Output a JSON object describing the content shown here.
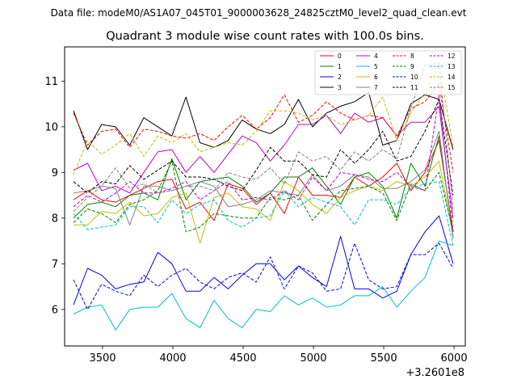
{
  "chart_data": {
    "type": "line",
    "suptitle": "Data file: modeM0/AS1A07_045T01_9000003628_24825cztM0_level2_quad_clean.evt",
    "title": "Quadrant 3 module wise count rates with 100.0s bins.",
    "xlabel": "",
    "ylabel": "",
    "x_offset_label": "+3.2601e8",
    "xlim": [
      3230,
      6080
    ],
    "ylim": [
      5.2,
      11.75
    ],
    "x_ticks": [
      3500,
      4000,
      4500,
      5000,
      5500,
      6000
    ],
    "x_tick_labels": [
      "3500",
      "4000",
      "4500",
      "5000",
      "5500",
      "6000"
    ],
    "y_ticks": [
      6,
      7,
      8,
      9,
      10,
      11
    ],
    "y_tick_labels": [
      "6",
      "7",
      "8",
      "9",
      "10",
      "11"
    ],
    "legend_position": "top-right",
    "x": [
      3293,
      3393,
      3493,
      3593,
      3693,
      3793,
      3893,
      3993,
      4093,
      4193,
      4293,
      4393,
      4493,
      4593,
      4693,
      4793,
      4893,
      4993,
      5093,
      5193,
      5293,
      5393,
      5493,
      5593,
      5693,
      5793,
      5893,
      5993
    ],
    "series": [
      {
        "name": "0",
        "color": "#ff0000",
        "dash": "solid",
        "values": [
          8.4,
          8.6,
          8.4,
          8.35,
          8.5,
          8.65,
          8.8,
          8.85,
          8.2,
          8.35,
          7.95,
          8.75,
          8.65,
          8.3,
          8.55,
          8.1,
          8.9,
          8.5,
          8.5,
          8.45,
          8.9,
          8.7,
          8.9,
          9.2,
          8.6,
          9.0,
          9.7,
          7.7
        ]
      },
      {
        "name": "1",
        "color": "#008000",
        "dash": "solid",
        "values": [
          8.0,
          8.3,
          8.35,
          8.25,
          8.5,
          8.55,
          8.4,
          9.3,
          8.4,
          8.8,
          8.85,
          8.9,
          8.7,
          8.35,
          8.55,
          8.9,
          8.9,
          9.1,
          8.7,
          8.3,
          8.9,
          9.0,
          8.7,
          8.0,
          9.2,
          8.7,
          9.8,
          7.6
        ]
      },
      {
        "name": "2",
        "color": "#0000ff",
        "dash": "solid",
        "values": [
          6.1,
          6.9,
          6.75,
          6.45,
          6.55,
          6.6,
          7.25,
          7.0,
          6.4,
          6.4,
          6.7,
          6.45,
          6.75,
          7.0,
          7.0,
          6.65,
          6.95,
          6.7,
          6.5,
          7.6,
          6.45,
          6.45,
          6.25,
          6.4,
          7.2,
          7.7,
          8.05,
          7.0
        ]
      },
      {
        "name": "3",
        "color": "#000000",
        "dash": "solid",
        "values": [
          10.35,
          9.5,
          10.05,
          10.0,
          9.6,
          10.2,
          10.0,
          9.8,
          10.65,
          9.65,
          9.55,
          9.7,
          10.15,
          9.95,
          9.85,
          10.05,
          10.6,
          10.0,
          10.3,
          10.45,
          10.55,
          10.75,
          9.6,
          9.7,
          10.5,
          10.7,
          10.6,
          9.5
        ]
      },
      {
        "name": "4",
        "color": "#bf00bf",
        "dash": "solid",
        "values": [
          9.05,
          9.2,
          8.6,
          8.7,
          8.55,
          9.0,
          9.45,
          9.5,
          9.0,
          9.35,
          9.0,
          9.4,
          9.8,
          9.65,
          9.25,
          9.6,
          10.05,
          10.05,
          10.25,
          9.85,
          10.3,
          10.1,
          10.2,
          9.8,
          10.1,
          10.1,
          10.45,
          8.0
        ]
      },
      {
        "name": "5",
        "color": "#00bfbf",
        "dash": "solid",
        "values": [
          5.9,
          6.05,
          6.1,
          5.55,
          6.0,
          6.05,
          6.05,
          6.35,
          5.8,
          5.6,
          6.2,
          5.8,
          5.6,
          6.0,
          5.95,
          6.3,
          6.1,
          6.25,
          6.05,
          6.1,
          6.3,
          6.3,
          6.5,
          6.05,
          6.4,
          6.7,
          7.5,
          7.4
        ]
      },
      {
        "name": "6",
        "color": "#bfbf00",
        "dash": "solid",
        "values": [
          7.85,
          7.85,
          8.15,
          8.1,
          8.35,
          8.05,
          8.1,
          8.45,
          8.55,
          7.45,
          8.45,
          8.55,
          8.25,
          8.2,
          7.95,
          8.8,
          8.6,
          8.3,
          8.1,
          8.45,
          8.6,
          8.7,
          8.6,
          8.8,
          8.7,
          8.9,
          9.25,
          7.6
        ]
      },
      {
        "name": "7",
        "color": "#808080",
        "dash": "solid",
        "values": [
          8.55,
          8.6,
          8.7,
          8.65,
          7.85,
          8.7,
          8.7,
          8.6,
          8.7,
          8.8,
          8.7,
          8.25,
          8.3,
          8.4,
          8.6,
          8.55,
          8.5,
          8.95,
          8.6,
          8.7,
          8.95,
          8.9,
          8.65,
          8.65,
          8.8,
          9.05,
          9.9,
          7.55
        ]
      },
      {
        "name": "8",
        "color": "#ff0000",
        "dash": "dashed",
        "values": [
          10.3,
          9.6,
          9.9,
          9.95,
          9.55,
          9.95,
          9.9,
          9.8,
          9.75,
          9.85,
          9.7,
          10.0,
          10.25,
          9.95,
          10.2,
          10.7,
          10.1,
          10.25,
          10.55,
          10.3,
          10.15,
          10.25,
          10.2,
          9.8,
          10.4,
          10.55,
          10.95,
          9.0
        ]
      },
      {
        "name": "9",
        "color": "#008000",
        "dash": "dashed",
        "values": [
          7.9,
          8.2,
          8.1,
          7.9,
          8.3,
          8.4,
          8.6,
          9.25,
          7.7,
          7.8,
          8.1,
          8.05,
          8.0,
          8.0,
          8.45,
          8.4,
          8.5,
          7.95,
          8.3,
          8.6,
          8.65,
          8.7,
          8.55,
          7.95,
          8.75,
          8.6,
          9.0,
          7.7
        ]
      },
      {
        "name": "10",
        "color": "#0000ff",
        "dash": "dashed",
        "values": [
          6.65,
          6.0,
          6.55,
          6.4,
          6.3,
          6.75,
          6.5,
          6.75,
          6.9,
          6.6,
          6.45,
          6.7,
          6.8,
          6.6,
          7.15,
          6.45,
          6.95,
          6.8,
          6.4,
          6.45,
          7.45,
          6.65,
          6.45,
          6.5,
          7.2,
          7.2,
          7.45,
          6.9
        ]
      },
      {
        "name": "11",
        "color": "#000000",
        "dash": "dashed",
        "values": [
          8.8,
          8.55,
          8.8,
          8.75,
          9.15,
          8.85,
          9.05,
          9.25,
          8.9,
          8.9,
          8.85,
          8.7,
          8.6,
          9.05,
          9.55,
          9.25,
          9.25,
          8.95,
          8.9,
          9.5,
          9.2,
          9.5,
          9.9,
          9.25,
          9.35,
          9.9,
          10.6,
          8.5
        ]
      },
      {
        "name": "12",
        "color": "#bf00bf",
        "dash": "dashed",
        "values": [
          8.25,
          8.5,
          8.35,
          8.55,
          8.8,
          8.55,
          8.55,
          8.65,
          8.8,
          8.4,
          8.6,
          8.8,
          8.4,
          8.45,
          8.4,
          8.6,
          8.4,
          8.9,
          8.6,
          9.0,
          8.95,
          8.85,
          8.8,
          9.0,
          8.7,
          8.6,
          10.7,
          7.7
        ]
      },
      {
        "name": "13",
        "color": "#00bfbf",
        "dash": "dashed",
        "values": [
          8.1,
          7.75,
          7.8,
          7.85,
          8.25,
          8.25,
          7.9,
          8.4,
          8.1,
          8.3,
          8.4,
          7.95,
          7.8,
          8.0,
          8.05,
          8.6,
          8.25,
          8.45,
          8.35,
          8.25,
          7.85,
          8.4,
          8.4,
          8.3,
          8.65,
          8.75,
          8.8,
          7.4
        ]
      },
      {
        "name": "14",
        "color": "#bfbf00",
        "dash": "dashed",
        "values": [
          8.95,
          9.7,
          9.4,
          9.6,
          9.85,
          9.35,
          9.8,
          9.65,
          9.85,
          9.45,
          9.55,
          9.65,
          9.6,
          9.9,
          10.35,
          10.35,
          10.3,
          10.15,
          10.25,
          10.05,
          10.15,
          10.25,
          10.65,
          9.7,
          10.3,
          10.75,
          11.4,
          9.55
        ]
      },
      {
        "name": "15",
        "color": "#808080",
        "dash": "dashed",
        "values": [
          8.15,
          8.45,
          8.7,
          9.1,
          8.65,
          8.75,
          8.55,
          8.6,
          8.7,
          8.7,
          8.6,
          9.0,
          8.9,
          8.85,
          9.1,
          8.75,
          9.45,
          9.25,
          9.35,
          9.05,
          9.45,
          9.25,
          9.5,
          9.3,
          10.4,
          11.35,
          11.4,
          8.2
        ]
      }
    ]
  }
}
